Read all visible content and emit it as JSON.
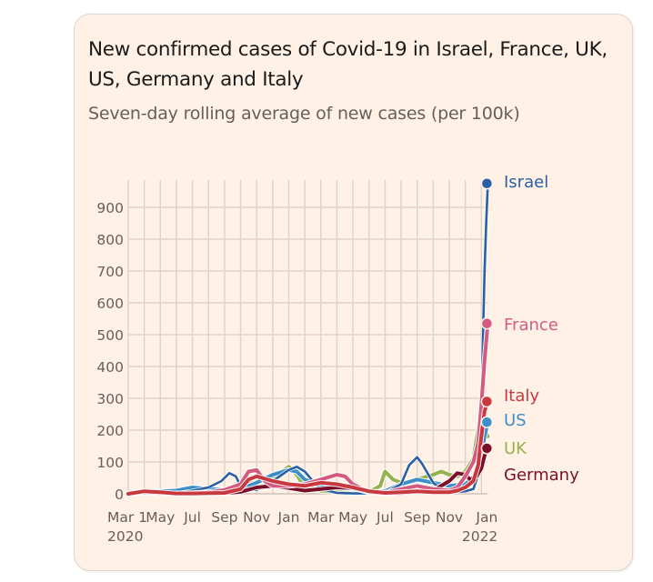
{
  "chart_data": {
    "type": "line",
    "title": "New confirmed cases of Covid-19 in Israel, France, UK, US, Germany and Italy",
    "subtitle": "Seven-day rolling average of new cases (per 100k)",
    "xlabel": "",
    "ylabel": "",
    "ylim": [
      0,
      950
    ],
    "yticks": [
      0,
      100,
      200,
      300,
      400,
      500,
      600,
      700,
      800,
      900
    ],
    "xlim_months": [
      0,
      22.4
    ],
    "xticks": [
      {
        "m": 0,
        "label": "Mar 1",
        "year": "2020"
      },
      {
        "m": 2,
        "label": "May",
        "year": ""
      },
      {
        "m": 4,
        "label": "Jul",
        "year": ""
      },
      {
        "m": 6,
        "label": "Sep",
        "year": ""
      },
      {
        "m": 8,
        "label": "Nov",
        "year": ""
      },
      {
        "m": 10,
        "label": "Jan",
        "year": ""
      },
      {
        "m": 12,
        "label": "Mar",
        "year": ""
      },
      {
        "m": 14,
        "label": "May",
        "year": ""
      },
      {
        "m": 16,
        "label": "Jul",
        "year": ""
      },
      {
        "m": 18,
        "label": "Sep",
        "year": ""
      },
      {
        "m": 20,
        "label": "Nov",
        "year": ""
      },
      {
        "m": 22,
        "label": "Jan",
        "year": "2022"
      }
    ],
    "grid": true,
    "legend": "direct labels at line ends (right)",
    "x_unit": "months since Mar 1 2020",
    "series": [
      {
        "name": "Israel",
        "color": "#2a5fa5",
        "x": [
          0,
          1,
          2,
          3,
          4,
          5,
          5.8,
          6.3,
          6.7,
          7,
          7.5,
          8,
          9,
          10,
          10.5,
          11,
          11.5,
          12,
          13,
          14,
          15,
          16,
          17,
          17.5,
          18,
          18.3,
          18.7,
          19,
          19.5,
          20,
          20.5,
          21,
          21.5,
          21.8,
          22,
          22.1,
          22.2,
          22.3,
          22.4
        ],
        "values": [
          0,
          5,
          3,
          2,
          10,
          20,
          40,
          65,
          55,
          25,
          15,
          12,
          40,
          75,
          85,
          70,
          40,
          15,
          3,
          1,
          1,
          2,
          30,
          90,
          115,
          95,
          60,
          35,
          15,
          8,
          6,
          8,
          15,
          60,
          250,
          500,
          700,
          850,
          975
        ]
      },
      {
        "name": "France",
        "color": "#d45a80",
        "x": [
          0,
          1,
          2,
          3,
          4,
          5,
          6,
          7,
          7.5,
          8,
          8.5,
          9,
          10,
          11,
          12,
          13,
          13.5,
          14,
          15,
          16,
          17,
          18,
          19,
          20,
          20.5,
          21,
          21.5,
          21.8,
          22,
          22.2,
          22.4
        ],
        "values": [
          0,
          5,
          2,
          1,
          2,
          5,
          12,
          30,
          70,
          75,
          40,
          25,
          25,
          30,
          45,
          60,
          55,
          30,
          5,
          3,
          15,
          25,
          15,
          10,
          20,
          55,
          100,
          160,
          280,
          420,
          535
        ]
      },
      {
        "name": "Italy",
        "color": "#c8383f",
        "x": [
          0,
          1,
          2,
          3,
          4,
          5,
          6,
          7,
          7.5,
          8,
          9,
          10,
          11,
          12,
          13,
          14,
          15,
          16,
          17,
          18,
          19,
          20,
          20.5,
          21,
          21.5,
          21.8,
          22,
          22.2,
          22.4
        ],
        "values": [
          0,
          8,
          5,
          1,
          1,
          2,
          3,
          15,
          45,
          55,
          40,
          30,
          25,
          35,
          30,
          20,
          8,
          3,
          5,
          8,
          5,
          5,
          10,
          20,
          40,
          90,
          180,
          260,
          290
        ]
      },
      {
        "name": "US",
        "color": "#3c8fc8",
        "x": [
          0,
          1,
          2,
          3,
          4,
          5,
          6,
          7,
          8,
          9,
          10,
          10.5,
          11,
          12,
          13,
          14,
          15,
          16,
          17,
          18,
          19,
          20,
          21,
          21.5,
          22,
          22.2,
          22.4
        ],
        "values": [
          0,
          3,
          8,
          10,
          20,
          15,
          12,
          15,
          35,
          60,
          75,
          70,
          45,
          25,
          20,
          15,
          5,
          8,
          30,
          45,
          35,
          25,
          30,
          50,
          120,
          180,
          225
        ]
      },
      {
        "name": "UK",
        "color": "#96b24e",
        "x": [
          0,
          1,
          2,
          3,
          4,
          5,
          6,
          7,
          8,
          9,
          10,
          10.5,
          11,
          12,
          13,
          14,
          15,
          15.7,
          16,
          16.5,
          17,
          18,
          19,
          19.5,
          20,
          20.5,
          21,
          21.5,
          22,
          22.1,
          22.2,
          22.4
        ],
        "values": [
          0,
          5,
          4,
          2,
          1,
          2,
          10,
          30,
          35,
          50,
          85,
          60,
          20,
          10,
          5,
          3,
          5,
          25,
          70,
          45,
          35,
          45,
          60,
          70,
          60,
          55,
          70,
          110,
          265,
          250,
          200,
          180
        ]
      },
      {
        "name": "Germany",
        "color": "#7a0f2a",
        "x": [
          0,
          1,
          2,
          3,
          4,
          5,
          6,
          7,
          8,
          9,
          10,
          11,
          12,
          13,
          14,
          15,
          16,
          17,
          18,
          19,
          20,
          20.5,
          21,
          21.3,
          21.7,
          22,
          22.2,
          22.4
        ],
        "values": [
          0,
          4,
          2,
          1,
          1,
          1,
          2,
          6,
          20,
          25,
          18,
          10,
          15,
          20,
          18,
          5,
          1,
          2,
          6,
          10,
          40,
          65,
          60,
          45,
          55,
          80,
          120,
          143
        ]
      }
    ]
  }
}
